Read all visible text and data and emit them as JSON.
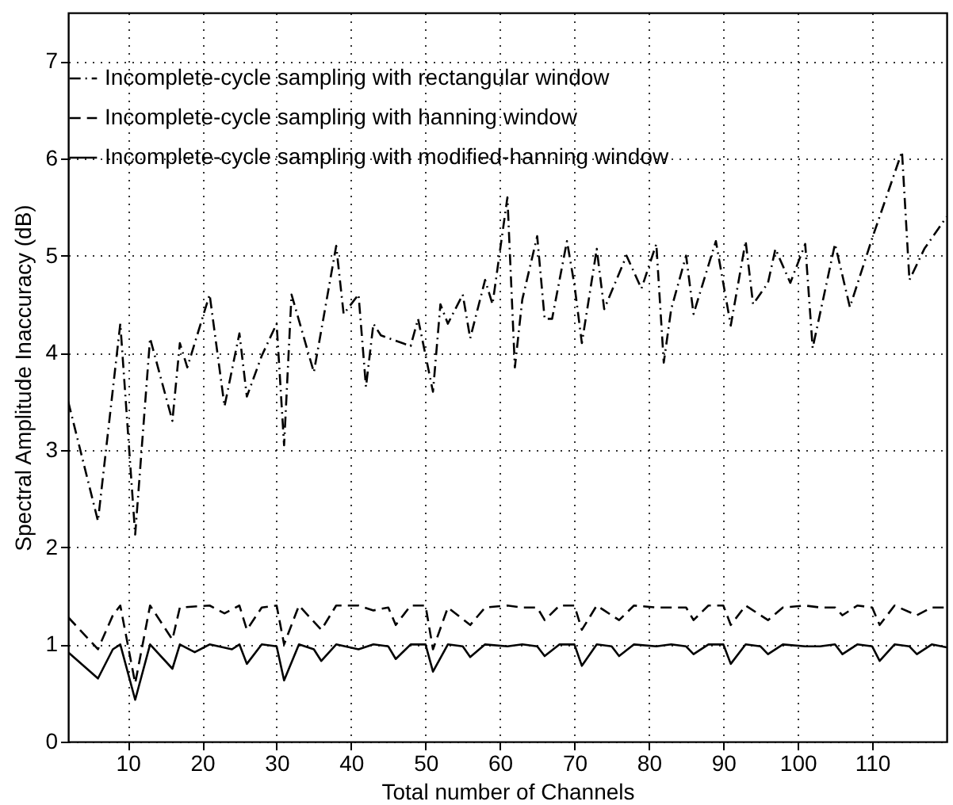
{
  "chart_data": {
    "type": "line",
    "xlabel": "Total number of Channels",
    "ylabel": "Spectral Amplitude Inaccuracy (dB)",
    "xlim": [
      2,
      120
    ],
    "ylim": [
      0,
      7.5
    ],
    "xticks": [
      10,
      20,
      30,
      40,
      50,
      60,
      70,
      80,
      90,
      100,
      110
    ],
    "yticks": [
      0,
      1,
      2,
      3,
      4,
      5,
      6,
      7
    ],
    "grid": true,
    "legend": "top left",
    "series": [
      {
        "name": "Incomplete-cycle sampling with rectangular window",
        "color": "#000000",
        "line_style": "dashdot",
        "x": [
          2,
          6,
          9,
          11,
          13,
          16,
          17,
          18,
          21,
          23,
          25,
          26,
          28,
          30,
          31,
          32,
          35,
          38,
          39,
          41,
          42,
          43,
          44,
          48,
          49,
          51,
          52,
          53,
          55,
          56,
          58,
          59,
          61,
          62,
          63,
          65,
          66,
          67,
          69,
          70,
          71,
          73,
          74,
          77,
          79,
          81,
          82,
          83,
          85,
          86,
          89,
          91,
          93,
          94,
          96,
          97,
          99,
          101,
          102,
          105,
          107,
          110,
          114,
          115,
          117,
          120
        ],
        "values": [
          3.5,
          2.27,
          4.3,
          2.13,
          4.15,
          3.3,
          4.1,
          3.85,
          4.6,
          3.45,
          4.2,
          3.55,
          3.97,
          4.3,
          3.05,
          4.6,
          3.8,
          5.1,
          4.4,
          4.6,
          3.65,
          4.3,
          4.18,
          4.07,
          4.35,
          3.6,
          4.5,
          4.3,
          4.6,
          4.15,
          4.75,
          4.5,
          5.6,
          3.85,
          4.55,
          5.2,
          4.35,
          4.35,
          5.15,
          4.7,
          4.1,
          5.07,
          4.45,
          5.0,
          4.66,
          5.12,
          3.9,
          4.45,
          5.0,
          4.4,
          5.15,
          4.28,
          5.15,
          4.5,
          4.72,
          5.07,
          4.72,
          5.12,
          4.05,
          5.12,
          4.47,
          5.18,
          6.07,
          4.75,
          5.07,
          5.4
        ]
      },
      {
        "name": "Incomplete-cycle sampling with hanning window",
        "color": "#000000",
        "line_style": "dashed",
        "x": [
          2,
          6,
          8,
          9,
          11,
          13,
          16,
          17,
          21,
          23,
          25,
          26,
          28,
          30,
          31,
          33,
          36,
          38,
          41,
          43,
          45,
          46,
          48,
          50,
          51,
          53,
          56,
          58,
          61,
          63,
          65,
          66,
          68,
          70,
          71,
          73,
          76,
          78,
          81,
          83,
          85,
          86,
          88,
          90,
          91,
          93,
          96,
          98,
          101,
          103,
          105,
          106,
          108,
          110,
          111,
          113,
          116,
          118,
          120
        ],
        "values": [
          1.28,
          0.95,
          1.3,
          1.4,
          0.6,
          1.4,
          1.05,
          1.38,
          1.4,
          1.32,
          1.4,
          1.15,
          1.38,
          1.4,
          1.0,
          1.4,
          1.15,
          1.4,
          1.4,
          1.35,
          1.38,
          1.2,
          1.4,
          1.4,
          0.95,
          1.38,
          1.2,
          1.38,
          1.4,
          1.38,
          1.38,
          1.25,
          1.4,
          1.4,
          1.15,
          1.4,
          1.25,
          1.4,
          1.38,
          1.38,
          1.38,
          1.25,
          1.4,
          1.4,
          1.2,
          1.4,
          1.25,
          1.38,
          1.4,
          1.38,
          1.38,
          1.3,
          1.4,
          1.38,
          1.2,
          1.4,
          1.3,
          1.38,
          1.38
        ]
      },
      {
        "name": "Incomplete-cycle sampling with modified-hanning window",
        "color": "#000000",
        "line_style": "solid",
        "x": [
          2,
          6,
          8,
          9,
          11,
          13,
          16,
          17,
          19,
          21,
          24,
          25,
          26,
          28,
          30,
          31,
          33,
          35,
          36,
          38,
          41,
          43,
          45,
          46,
          48,
          50,
          51,
          53,
          55,
          56,
          58,
          61,
          63,
          65,
          66,
          68,
          70,
          71,
          73,
          75,
          76,
          78,
          81,
          83,
          85,
          86,
          88,
          90,
          91,
          93,
          95,
          96,
          98,
          101,
          103,
          105,
          106,
          108,
          110,
          111,
          113,
          115,
          116,
          118,
          120
        ],
        "values": [
          0.92,
          0.65,
          0.95,
          1.0,
          0.43,
          1.0,
          0.75,
          1.0,
          0.92,
          1.0,
          0.95,
          1.0,
          0.8,
          1.0,
          0.98,
          0.63,
          1.0,
          0.95,
          0.83,
          1.0,
          0.95,
          1.0,
          0.98,
          0.85,
          1.0,
          1.0,
          0.72,
          1.0,
          0.98,
          0.87,
          1.0,
          0.98,
          1.0,
          0.98,
          0.88,
          1.0,
          1.0,
          0.78,
          1.0,
          0.98,
          0.88,
          1.0,
          0.98,
          1.0,
          0.98,
          0.9,
          1.0,
          1.0,
          0.8,
          1.0,
          0.98,
          0.9,
          1.0,
          0.98,
          0.98,
          1.0,
          0.9,
          1.0,
          0.98,
          0.83,
          1.0,
          0.98,
          0.9,
          1.0,
          0.97
        ]
      }
    ]
  }
}
